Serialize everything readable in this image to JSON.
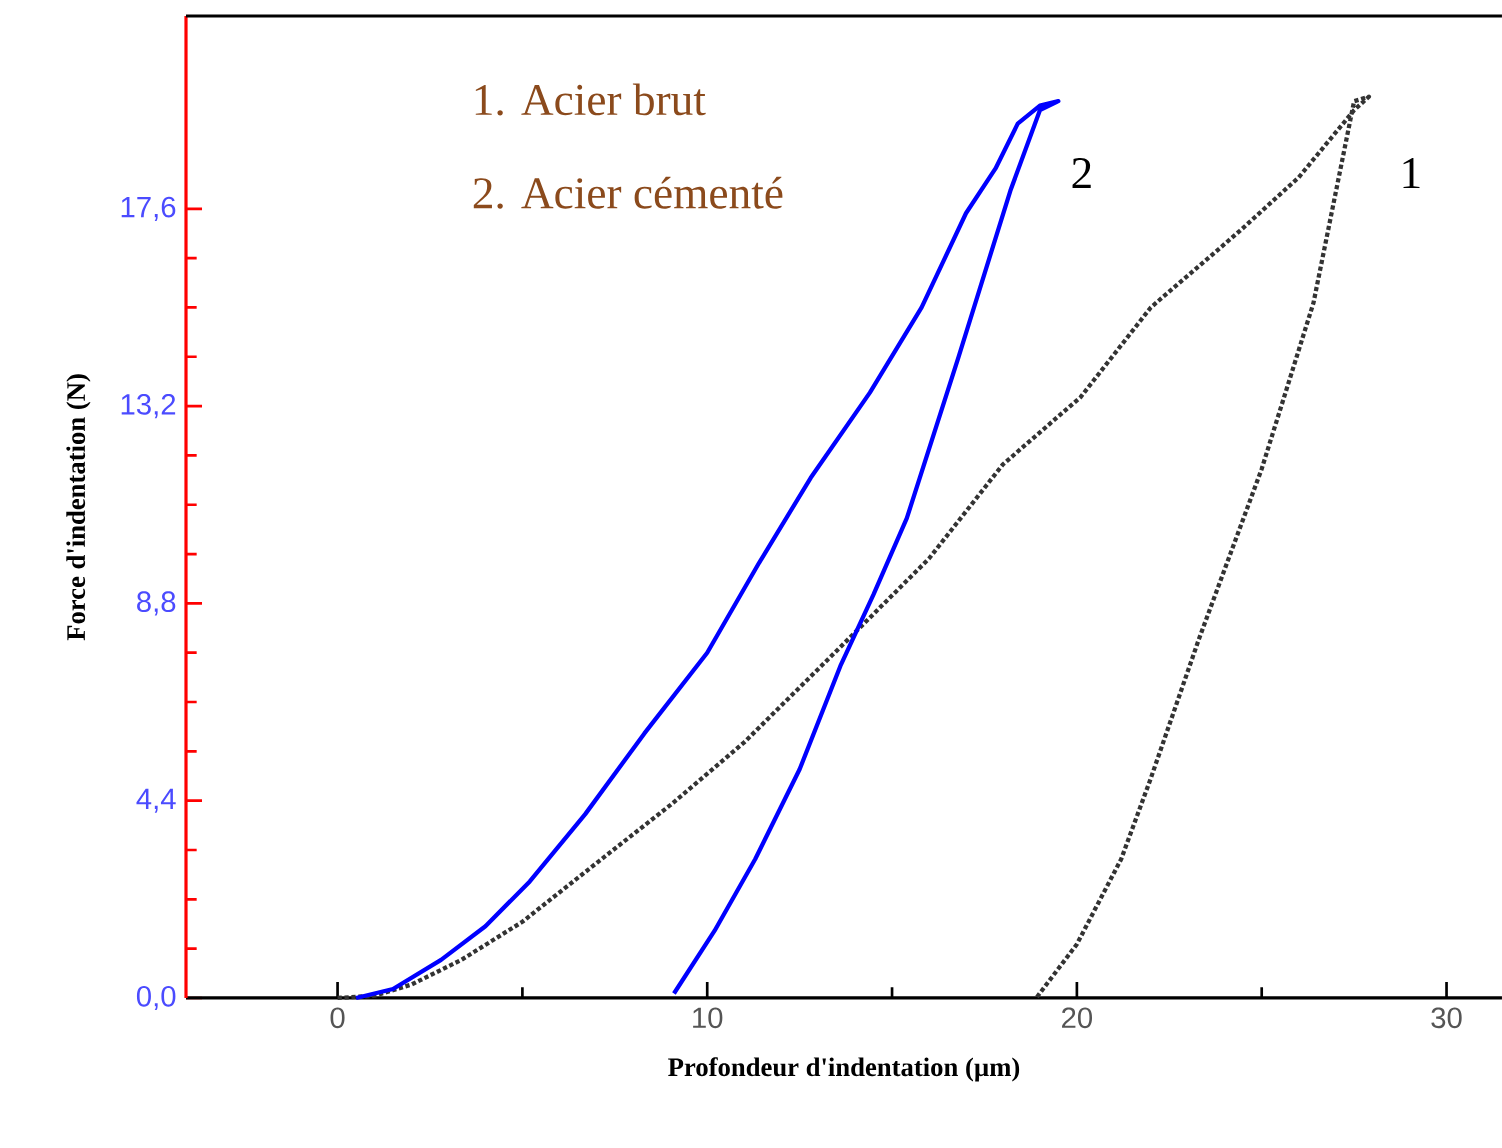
{
  "chart_data": {
    "type": "line",
    "xlabel": "Profondeur d'indentation (µm)",
    "ylabel": "Force d'indentation  (N)",
    "xlim": [
      -4.1,
      31.5
    ],
    "ylim": [
      0,
      21.9
    ],
    "xticks": [
      0,
      10,
      20,
      30
    ],
    "yticks": [
      {
        "value": 0,
        "label": "0,0"
      },
      {
        "value": 4.4,
        "label": "4,4"
      },
      {
        "value": 8.8,
        "label": "8,8"
      },
      {
        "value": 13.2,
        "label": "13,2"
      },
      {
        "value": 17.6,
        "label": "17,6"
      }
    ],
    "series": [
      {
        "color": "#333333",
        "line_style": "dotted",
        "x": [
          0,
          1,
          2,
          3.35,
          5,
          7.1,
          9,
          11,
          13.9,
          16,
          18,
          20.1,
          22,
          24.4,
          26,
          27.5,
          27.9,
          27.5,
          26.4,
          25,
          23.3,
          22,
          21.2,
          20,
          18.9
        ],
        "values": [
          0,
          0.05,
          0.3,
          0.85,
          1.7,
          3.07,
          4.3,
          5.7,
          8.07,
          9.8,
          11.9,
          13.4,
          15.4,
          17.1,
          18.3,
          19.8,
          20.1,
          20,
          15.5,
          11.8,
          8,
          4.9,
          3.1,
          1.2,
          0
        ]
      },
      {
        "color": "#0000ff",
        "line_style": "solid",
        "x": [
          0.5,
          1.5,
          2.8,
          4,
          5.2,
          6.7,
          8.3,
          10,
          11.4,
          12.8,
          14.4,
          15.8,
          17,
          17.8,
          18.4,
          19,
          19.5,
          19,
          18.2,
          16.8,
          15.4,
          14.5,
          13.6,
          12.5,
          11.3,
          10.2,
          9.1
        ],
        "values": [
          0,
          0.2,
          0.85,
          1.6,
          2.6,
          4.1,
          5.9,
          7.7,
          9.7,
          11.6,
          13.5,
          15.4,
          17.5,
          18.5,
          19.5,
          19.9,
          20,
          19.8,
          18,
          14.3,
          10.7,
          9,
          7.4,
          5.1,
          3.1,
          1.5,
          0.1
        ]
      }
    ],
    "annotations": [
      "1.   Acier brut",
      "2.   Acier cémenté",
      "1",
      "2"
    ]
  }
}
